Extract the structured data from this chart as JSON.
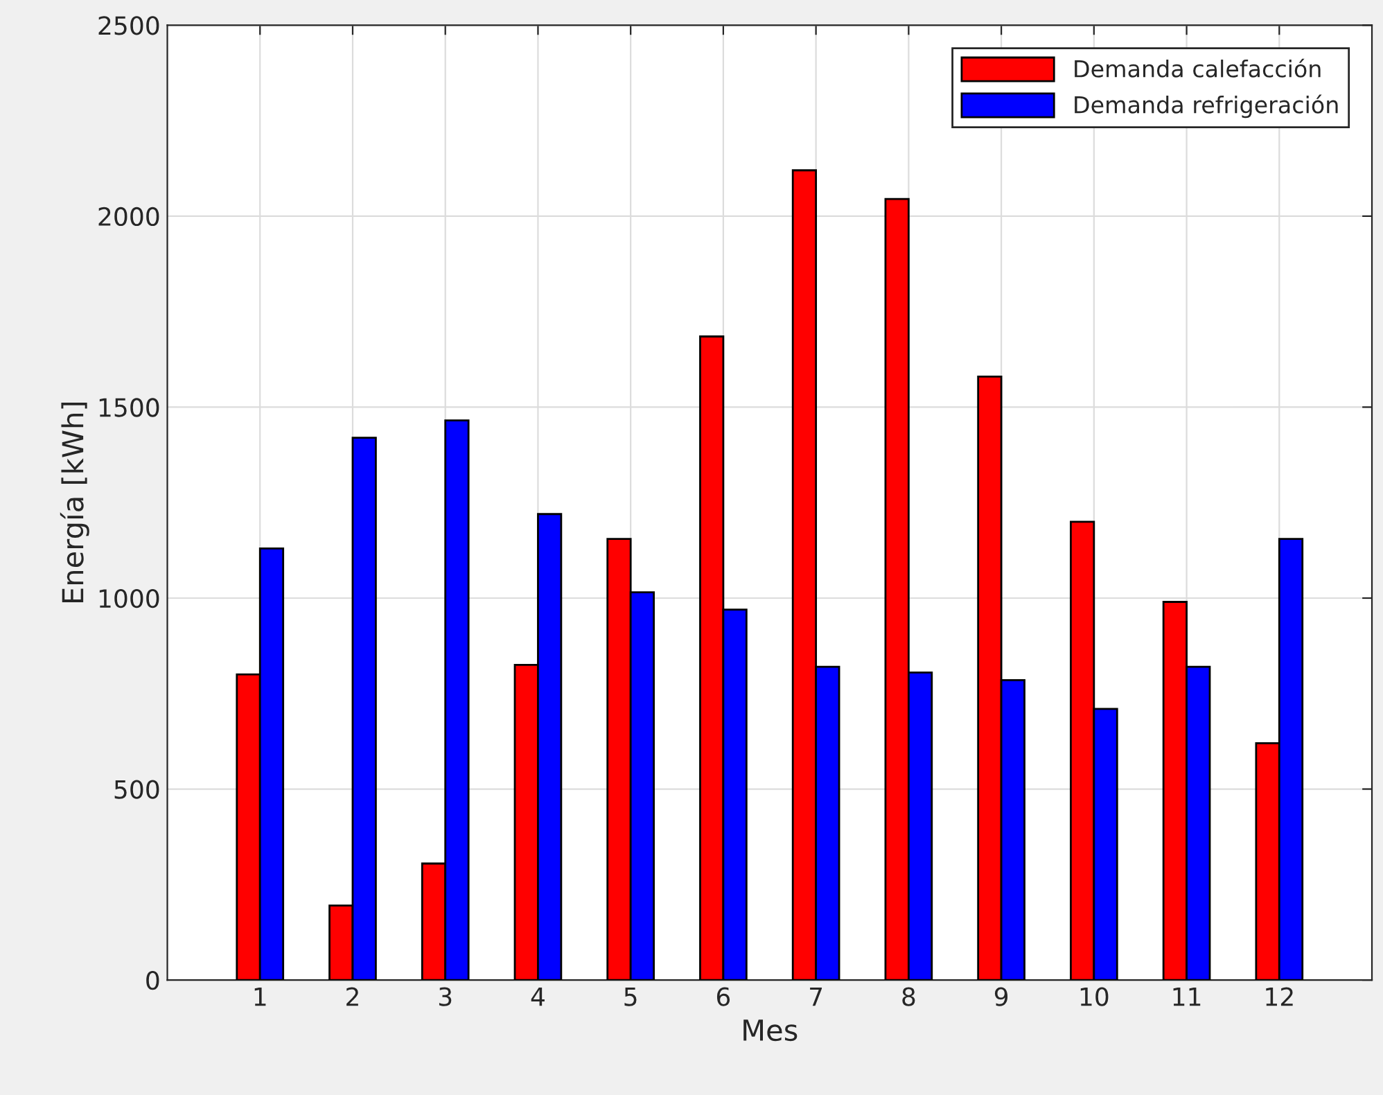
{
  "chart_data": {
    "type": "bar",
    "xlabel": "Mes",
    "ylabel": "Energía [kWh]",
    "x": [
      1,
      2,
      3,
      4,
      5,
      6,
      7,
      8,
      9,
      10,
      11,
      12
    ],
    "series": [
      {
        "name": "Demanda calefacción",
        "color": "#ff0000",
        "values": [
          800,
          195,
          305,
          825,
          1155,
          1685,
          2120,
          2045,
          1580,
          1200,
          990,
          620
        ]
      },
      {
        "name": "Demanda refrigeración",
        "color": "#0000ff",
        "values": [
          1130,
          1420,
          1465,
          1220,
          1015,
          970,
          820,
          805,
          785,
          710,
          820,
          1155
        ]
      }
    ],
    "xlim": [
      0,
      13
    ],
    "xticks": [
      1,
      2,
      3,
      4,
      5,
      6,
      7,
      8,
      9,
      10,
      11,
      12
    ],
    "ylim": [
      0,
      2500
    ],
    "yticks": [
      0,
      500,
      1000,
      1500,
      2000,
      2500
    ],
    "grid": true,
    "legend": "top right"
  }
}
